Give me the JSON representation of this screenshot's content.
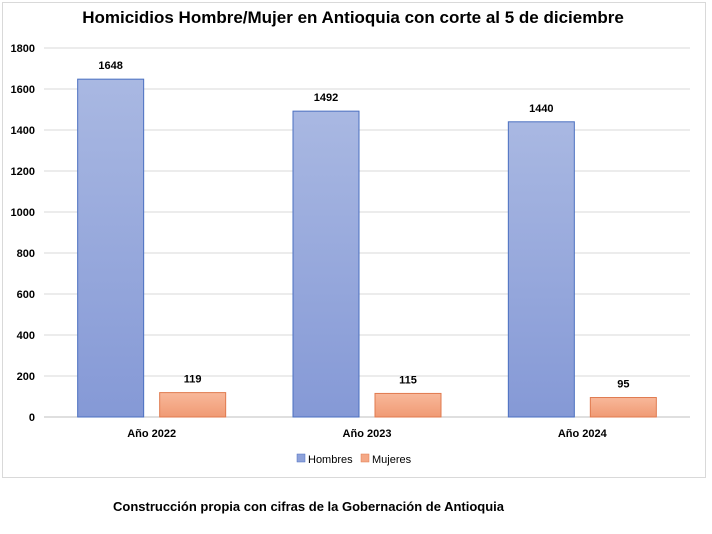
{
  "chart_data": {
    "type": "bar",
    "title": "Homicidios Hombre/Mujer en Antioquia con corte al 5 de diciembre",
    "categories": [
      "Año 2022",
      "Año 2023",
      "Año 2024"
    ],
    "series": [
      {
        "name": "Hombres",
        "values": [
          1648,
          1492,
          1440
        ],
        "color": "#8EA2DA"
      },
      {
        "name": "Mujeres",
        "values": [
          119,
          115,
          95
        ],
        "color": "#F4A886"
      }
    ],
    "ylim": [
      0,
      1800
    ],
    "yticks": [
      0,
      200,
      400,
      600,
      800,
      1000,
      1200,
      1400,
      1600,
      1800
    ],
    "grid": true,
    "legend": "bottom"
  },
  "caption": "Construcción propia con cifras de la Gobernación de Antioquia"
}
